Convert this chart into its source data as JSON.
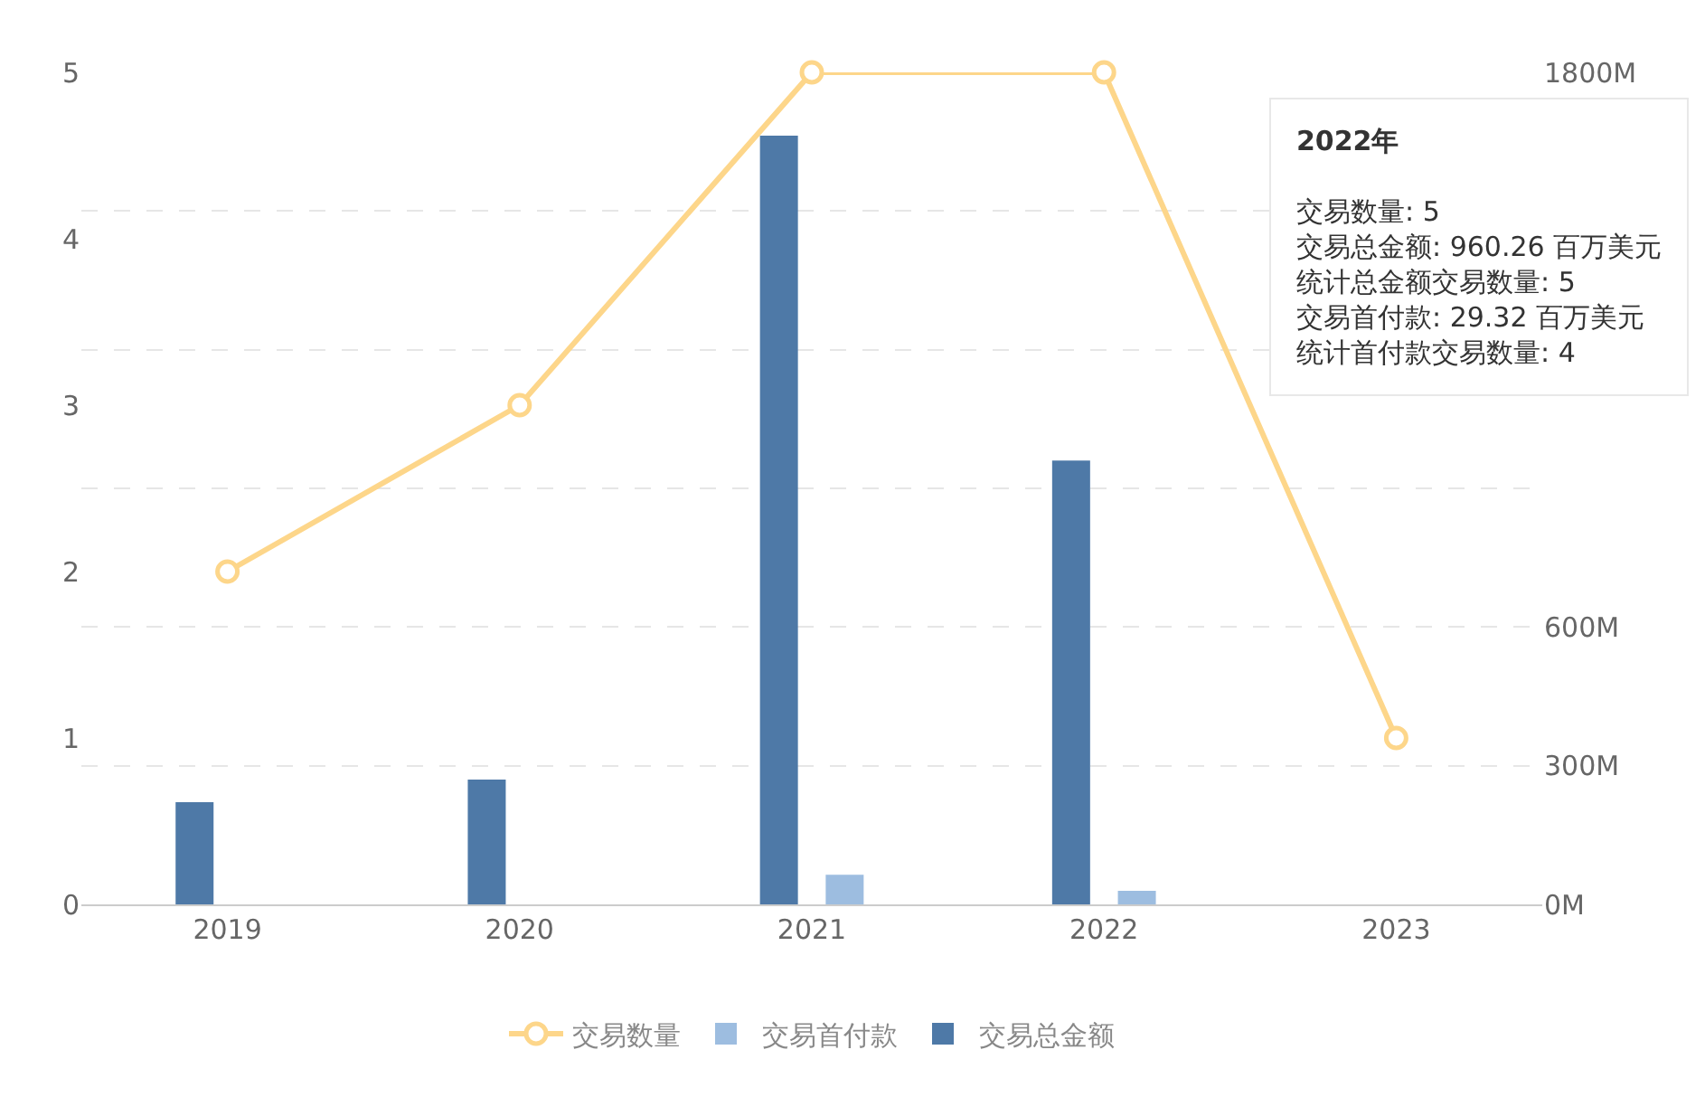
{
  "chart_data": {
    "type": "bar",
    "categories": [
      "2019",
      "2020",
      "2021",
      "2022",
      "2023"
    ],
    "series": [
      {
        "name": "交易数量",
        "type": "line",
        "color": "#fdd68a",
        "values": [
          2,
          3,
          5,
          5,
          1
        ],
        "marker": "circle"
      },
      {
        "name": "交易首付款",
        "color": "#9dbde0",
        "axis": "y2",
        "values": [
          null,
          null,
          64,
          29.32,
          null
        ]
      },
      {
        "name": "交易总金额",
        "color": "#4e79a7",
        "axis": "y2",
        "values": [
          221,
          270,
          1663,
          960.26,
          null
        ]
      }
    ],
    "ylim": [
      0,
      5
    ],
    "yticks": [
      0,
      1,
      2,
      3,
      4,
      5
    ],
    "y2lim": [
      0,
      1800
    ],
    "y2ticks": [
      {
        "value": 0,
        "label": "0M"
      },
      {
        "value": 300,
        "label": "300M"
      },
      {
        "value": 600,
        "label": "600M"
      },
      {
        "value": 900,
        "label": null
      },
      {
        "value": 1200,
        "label": null
      },
      {
        "value": 1500,
        "label": null
      },
      {
        "value": 1800,
        "label": "1800M"
      }
    ],
    "grid": "y2",
    "legend": "bottom",
    "annotations": [
      "2022年",
      "交易数量: 5",
      "交易总金额: 960.26 百万美元",
      "统计总金额交易数量: 5",
      "交易首付款: 29.32 百万美元",
      "统计首付款交易数量: 4"
    ]
  }
}
